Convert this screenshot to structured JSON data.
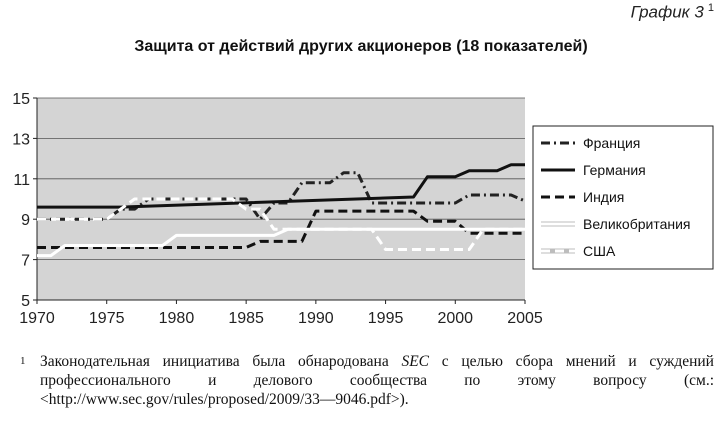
{
  "header": {
    "label": "График 3",
    "footnote_mark": "1"
  },
  "title": "Защита от действий других акционеров (18 показателей)",
  "footnote": {
    "mark": "1",
    "text_before": "Законодательная инициатива была обнародована ",
    "sec": "SEC",
    "text_after": " с целью сбора мнений и суждений профессионального и делового сообщества по этому вопросу (см.: <http://www.sec.gov/rules/proposed/2009/33—9046.pdf>)."
  },
  "chart_data": {
    "type": "line",
    "title": "Защита от действий других акционеров (18 показателей)",
    "xlabel": "",
    "ylabel": "",
    "xlim": [
      1970,
      2005
    ],
    "ylim": [
      5,
      15
    ],
    "x_ticks": [
      1970,
      1975,
      1980,
      1985,
      1990,
      1995,
      2000,
      2005
    ],
    "y_ticks": [
      5,
      7,
      9,
      11,
      13,
      15
    ],
    "grid": "horizontal",
    "plot_background": "#d4d4d4",
    "legend_position": "right",
    "series": [
      {
        "name": "Франция",
        "color": "#222222",
        "style": "dashdot",
        "x": [
          1970,
          1975,
          1976,
          1977,
          1978,
          1985,
          1986,
          1987,
          1988,
          1989,
          1990,
          1991,
          1992,
          1993,
          1994,
          1995,
          2000,
          2001,
          2002,
          2003,
          2004,
          2005
        ],
        "y": [
          9,
          9,
          9.5,
          9.5,
          10,
          10,
          9,
          9.8,
          9.8,
          10.8,
          10.8,
          10.8,
          11.3,
          11.3,
          9.8,
          9.8,
          9.8,
          10.2,
          10.2,
          10.2,
          10.2,
          9.9
        ]
      },
      {
        "name": "Германия",
        "color": "#111111",
        "style": "solid",
        "x": [
          1970,
          1976,
          1997,
          1998,
          2000,
          2001,
          2003,
          2004,
          2005
        ],
        "y": [
          9.6,
          9.6,
          10.1,
          11.1,
          11.1,
          11.4,
          11.4,
          11.7,
          11.7
        ]
      },
      {
        "name": "Индия",
        "color": "#111111",
        "style": "dash",
        "x": [
          1970,
          1985,
          1986,
          1988,
          1989,
          1990,
          1995,
          1997,
          1998,
          1999,
          2000,
          2001,
          2005
        ],
        "y": [
          7.6,
          7.6,
          7.9,
          7.9,
          7.9,
          9.4,
          9.4,
          9.4,
          8.9,
          8.9,
          8.9,
          8.3,
          8.3
        ]
      },
      {
        "name": "Великобритания",
        "color": "#ffffff",
        "style": "solid",
        "x": [
          1970,
          1971,
          1972,
          1978,
          1979,
          1980,
          1987,
          1988,
          1989,
          1990,
          2005
        ],
        "y": [
          7.2,
          7.2,
          7.7,
          7.7,
          7.7,
          8.2,
          8.2,
          8.5,
          8.5,
          8.5,
          8.5
        ]
      },
      {
        "name": "США",
        "color": "#ffffff",
        "style": "dash",
        "x": [
          1970,
          1974,
          1975,
          1976,
          1977,
          1984,
          1985,
          1986,
          1987,
          1988,
          1989,
          1993,
          1994,
          1995,
          2000,
          2001,
          2002,
          2005
        ],
        "y": [
          9,
          9,
          9,
          9.5,
          10,
          10,
          9.5,
          9.5,
          8.5,
          8.5,
          8.5,
          8.5,
          8.5,
          7.5,
          7.5,
          7.5,
          8.5,
          8.5
        ]
      }
    ]
  }
}
